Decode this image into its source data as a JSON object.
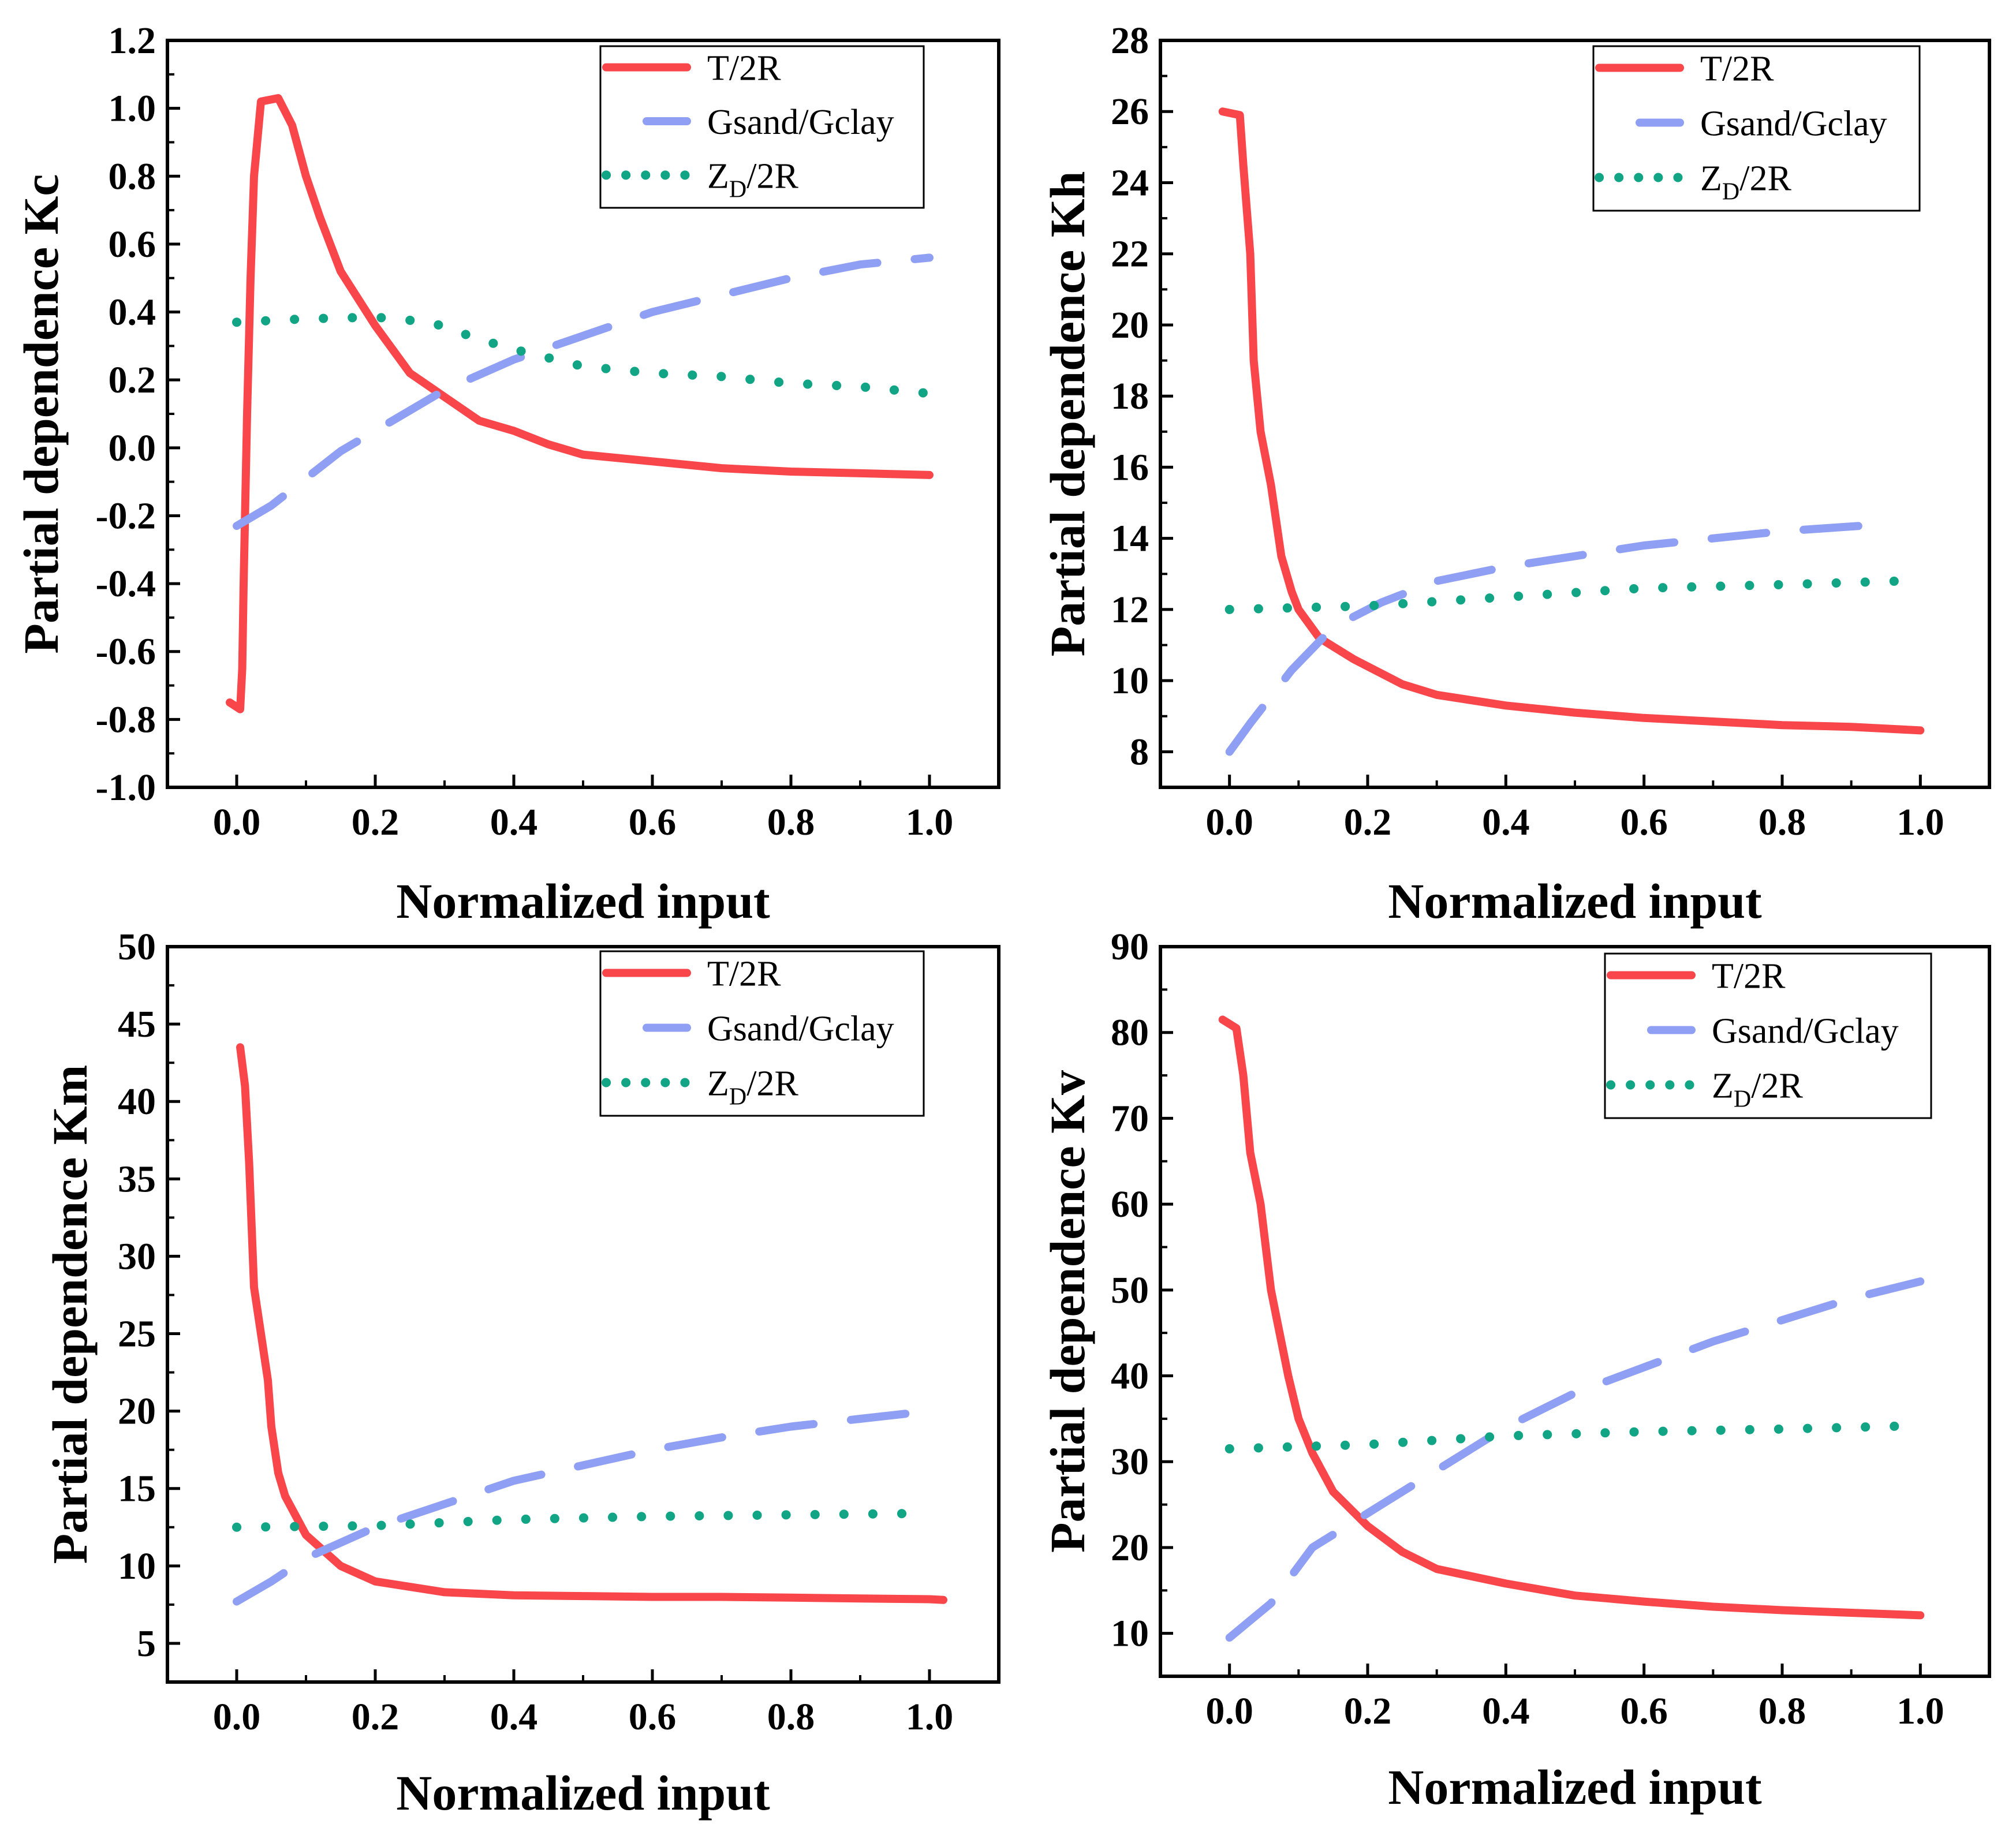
{
  "colors": {
    "t2r": "#f9464a",
    "gsand": "#8f9ff4",
    "zd": "#11a585",
    "axis": "#000000",
    "background": "#ffffff"
  },
  "legend_labels": {
    "t2r": "T/2R",
    "gsand": "Gsand/Gclay",
    "zd_main": "Z",
    "zd_sub": "D",
    "zd_tail": "/2R"
  },
  "chart_data": [
    {
      "id": "kc",
      "type": "line",
      "ylabel": "Partial dependence Kc",
      "xlabel": "Normalized input",
      "xlim": [
        -0.1,
        1.1
      ],
      "ylim": [
        -1.0,
        1.2
      ],
      "xticks": [
        0.0,
        0.2,
        0.4,
        0.6,
        0.8,
        1.0
      ],
      "xtick_labels": [
        "0.0",
        "0.2",
        "0.4",
        "0.6",
        "0.8",
        "1.0"
      ],
      "yticks": [
        -1.0,
        -0.8,
        -0.6,
        -0.4,
        -0.2,
        0.0,
        0.2,
        0.4,
        0.6,
        0.8,
        1.0,
        1.2
      ],
      "ytick_labels": [
        "-1.0",
        "-0.8",
        "-0.6",
        "-0.4",
        "-0.2",
        "0.0",
        "0.2",
        "0.4",
        "0.6",
        "0.8",
        "1.0",
        "1.2"
      ],
      "series": [
        {
          "name": "T/2R",
          "style": "solid",
          "points": [
            [
              -0.01,
              -0.75
            ],
            [
              0.005,
              -0.77
            ],
            [
              0.008,
              -0.65
            ],
            [
              0.01,
              -0.4
            ],
            [
              0.015,
              0.1
            ],
            [
              0.02,
              0.5
            ],
            [
              0.025,
              0.8
            ],
            [
              0.035,
              1.02
            ],
            [
              0.06,
              1.03
            ],
            [
              0.08,
              0.95
            ],
            [
              0.1,
              0.8
            ],
            [
              0.12,
              0.68
            ],
            [
              0.15,
              0.52
            ],
            [
              0.2,
              0.36
            ],
            [
              0.25,
              0.22
            ],
            [
              0.3,
              0.15
            ],
            [
              0.35,
              0.08
            ],
            [
              0.4,
              0.05
            ],
            [
              0.45,
              0.01
            ],
            [
              0.5,
              -0.02
            ],
            [
              0.6,
              -0.04
            ],
            [
              0.7,
              -0.06
            ],
            [
              0.8,
              -0.07
            ],
            [
              0.9,
              -0.075
            ],
            [
              1.0,
              -0.08
            ]
          ]
        },
        {
          "name": "Gsand/Gclay",
          "style": "dashed",
          "points": [
            [
              0.0,
              -0.23
            ],
            [
              0.05,
              -0.17
            ],
            [
              0.1,
              -0.09
            ],
            [
              0.15,
              -0.01
            ],
            [
              0.2,
              0.05
            ],
            [
              0.3,
              0.17
            ],
            [
              0.4,
              0.26
            ],
            [
              0.5,
              0.33
            ],
            [
              0.6,
              0.4
            ],
            [
              0.7,
              0.45
            ],
            [
              0.8,
              0.5
            ],
            [
              0.9,
              0.54
            ],
            [
              1.0,
              0.56
            ]
          ]
        },
        {
          "name": "ZD/2R",
          "style": "dotted",
          "points": [
            [
              0.0,
              0.37
            ],
            [
              0.1,
              0.38
            ],
            [
              0.2,
              0.385
            ],
            [
              0.28,
              0.37
            ],
            [
              0.35,
              0.32
            ],
            [
              0.4,
              0.29
            ],
            [
              0.5,
              0.24
            ],
            [
              0.6,
              0.22
            ],
            [
              0.7,
              0.21
            ],
            [
              0.8,
              0.19
            ],
            [
              0.9,
              0.18
            ],
            [
              1.0,
              0.16
            ]
          ]
        }
      ]
    },
    {
      "id": "kh",
      "type": "line",
      "ylabel": "Partial dependence Kh",
      "xlabel": "Normalized input",
      "xlim": [
        -0.1,
        1.1
      ],
      "ylim": [
        7,
        28
      ],
      "xticks": [
        0.0,
        0.2,
        0.4,
        0.6,
        0.8,
        1.0
      ],
      "xtick_labels": [
        "0.0",
        "0.2",
        "0.4",
        "0.6",
        "0.8",
        "1.0"
      ],
      "yticks": [
        8,
        10,
        12,
        14,
        16,
        18,
        20,
        22,
        24,
        26,
        28
      ],
      "ytick_labels": [
        "8",
        "10",
        "12",
        "14",
        "16",
        "18",
        "20",
        "22",
        "24",
        "26",
        "28"
      ],
      "series": [
        {
          "name": "T/2R",
          "style": "solid",
          "points": [
            [
              -0.01,
              26.0
            ],
            [
              0.015,
              25.9
            ],
            [
              0.02,
              24.5
            ],
            [
              0.03,
              22.0
            ],
            [
              0.035,
              19.0
            ],
            [
              0.045,
              17.0
            ],
            [
              0.06,
              15.5
            ],
            [
              0.075,
              13.5
            ],
            [
              0.09,
              12.5
            ],
            [
              0.1,
              12.0
            ],
            [
              0.13,
              11.2
            ],
            [
              0.18,
              10.6
            ],
            [
              0.25,
              9.9
            ],
            [
              0.3,
              9.6
            ],
            [
              0.4,
              9.3
            ],
            [
              0.5,
              9.1
            ],
            [
              0.6,
              8.95
            ],
            [
              0.7,
              8.85
            ],
            [
              0.8,
              8.75
            ],
            [
              0.9,
              8.7
            ],
            [
              1.0,
              8.6
            ]
          ]
        },
        {
          "name": "Gsand/Gclay",
          "style": "dashed",
          "points": [
            [
              0.0,
              8.0
            ],
            [
              0.03,
              8.8
            ],
            [
              0.09,
              10.3
            ],
            [
              0.15,
              11.5
            ],
            [
              0.22,
              12.2
            ],
            [
              0.3,
              12.8
            ],
            [
              0.4,
              13.2
            ],
            [
              0.5,
              13.5
            ],
            [
              0.6,
              13.8
            ],
            [
              0.7,
              14.0
            ],
            [
              0.8,
              14.2
            ],
            [
              0.95,
              14.4
            ]
          ]
        },
        {
          "name": "ZD/2R",
          "style": "dotted",
          "points": [
            [
              0.0,
              12.0
            ],
            [
              0.2,
              12.1
            ],
            [
              0.4,
              12.35
            ],
            [
              0.6,
              12.6
            ],
            [
              0.8,
              12.7
            ],
            [
              0.97,
              12.8
            ]
          ]
        }
      ]
    },
    {
      "id": "km",
      "type": "line",
      "ylabel": "Partial dependence Km",
      "xlabel": "Normalized input",
      "xlim": [
        -0.1,
        1.1
      ],
      "ylim": [
        2.5,
        50
      ],
      "xticks": [
        0.0,
        0.2,
        0.4,
        0.6,
        0.8,
        1.0
      ],
      "xtick_labels": [
        "0.0",
        "0.2",
        "0.4",
        "0.6",
        "0.8",
        "1.0"
      ],
      "yticks": [
        5,
        10,
        15,
        20,
        25,
        30,
        35,
        40,
        45,
        50
      ],
      "ytick_labels": [
        "5",
        "10",
        "15",
        "20",
        "25",
        "30",
        "35",
        "40",
        "45",
        "50"
      ],
      "series": [
        {
          "name": "T/2R",
          "style": "solid",
          "points": [
            [
              0.005,
              43.5
            ],
            [
              0.012,
              41.0
            ],
            [
              0.018,
              36.0
            ],
            [
              0.025,
              28.0
            ],
            [
              0.035,
              25.0
            ],
            [
              0.045,
              22.0
            ],
            [
              0.05,
              19.0
            ],
            [
              0.06,
              16.0
            ],
            [
              0.07,
              14.5
            ],
            [
              0.1,
              12.0
            ],
            [
              0.15,
              10.0
            ],
            [
              0.2,
              9.0
            ],
            [
              0.3,
              8.3
            ],
            [
              0.4,
              8.1
            ],
            [
              0.5,
              8.05
            ],
            [
              0.6,
              8.0
            ],
            [
              0.7,
              8.0
            ],
            [
              0.8,
              7.95
            ],
            [
              0.9,
              7.9
            ],
            [
              1.0,
              7.85
            ],
            [
              1.02,
              7.8
            ]
          ]
        },
        {
          "name": "Gsand/Gclay",
          "style": "dashed",
          "points": [
            [
              0.0,
              7.7
            ],
            [
              0.05,
              9.0
            ],
            [
              0.1,
              10.5
            ],
            [
              0.2,
              12.5
            ],
            [
              0.3,
              14.0
            ],
            [
              0.4,
              15.5
            ],
            [
              0.5,
              16.5
            ],
            [
              0.6,
              17.5
            ],
            [
              0.7,
              18.3
            ],
            [
              0.8,
              19.0
            ],
            [
              0.9,
              19.5
            ],
            [
              1.0,
              20.0
            ]
          ]
        },
        {
          "name": "ZD/2R",
          "style": "dotted",
          "points": [
            [
              0.0,
              12.5
            ],
            [
              0.2,
              12.6
            ],
            [
              0.4,
              13.0
            ],
            [
              0.6,
              13.2
            ],
            [
              0.8,
              13.3
            ],
            [
              1.0,
              13.4
            ]
          ]
        }
      ]
    },
    {
      "id": "kv",
      "type": "line",
      "ylabel": "Partial dependence Kv",
      "xlabel": "Normalized input",
      "xlim": [
        -0.1,
        1.1
      ],
      "ylim": [
        5,
        90
      ],
      "xticks": [
        0.0,
        0.2,
        0.4,
        0.6,
        0.8,
        1.0
      ],
      "xtick_labels": [
        "0.0",
        "0.2",
        "0.4",
        "0.6",
        "0.8",
        "1.0"
      ],
      "yticks": [
        10,
        20,
        30,
        40,
        50,
        60,
        70,
        80,
        90
      ],
      "ytick_labels": [
        "10",
        "20",
        "30",
        "40",
        "50",
        "60",
        "70",
        "80",
        "90"
      ],
      "series": [
        {
          "name": "T/2R",
          "style": "solid",
          "points": [
            [
              -0.01,
              81.5
            ],
            [
              0.01,
              80.5
            ],
            [
              0.02,
              75.0
            ],
            [
              0.03,
              66.0
            ],
            [
              0.045,
              60.0
            ],
            [
              0.06,
              50.0
            ],
            [
              0.07,
              46.0
            ],
            [
              0.085,
              40.0
            ],
            [
              0.1,
              35.0
            ],
            [
              0.12,
              31.0
            ],
            [
              0.15,
              26.5
            ],
            [
              0.2,
              22.5
            ],
            [
              0.25,
              19.5
            ],
            [
              0.3,
              17.5
            ],
            [
              0.4,
              15.8
            ],
            [
              0.5,
              14.4
            ],
            [
              0.6,
              13.7
            ],
            [
              0.7,
              13.1
            ],
            [
              0.8,
              12.7
            ],
            [
              0.9,
              12.4
            ],
            [
              1.0,
              12.1
            ]
          ]
        },
        {
          "name": "Gsand/Gclay",
          "style": "dashed",
          "points": [
            [
              0.0,
              9.5
            ],
            [
              0.03,
              11.5
            ],
            [
              0.06,
              13.5
            ],
            [
              0.12,
              20.0
            ],
            [
              0.2,
              24.0
            ],
            [
              0.3,
              29.0
            ],
            [
              0.4,
              34.0
            ],
            [
              0.5,
              38.0
            ],
            [
              0.6,
              41.0
            ],
            [
              0.7,
              44.0
            ],
            [
              0.8,
              46.5
            ],
            [
              0.9,
              49.0
            ],
            [
              1.0,
              51.0
            ]
          ]
        },
        {
          "name": "ZD/2R",
          "style": "dotted",
          "points": [
            [
              0.0,
              31.5
            ],
            [
              0.2,
              32.0
            ],
            [
              0.4,
              33.0
            ],
            [
              0.6,
              33.5
            ],
            [
              0.8,
              33.8
            ],
            [
              1.0,
              34.2
            ]
          ]
        }
      ]
    }
  ]
}
